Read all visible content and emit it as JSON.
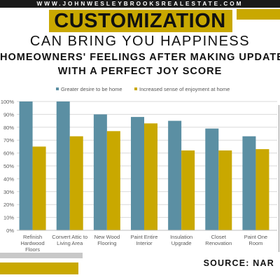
{
  "header": {
    "website": "WWW.JOHNWESLEYBROOKSREALESTATE.COM",
    "title": "CUSTOMIZATION",
    "subtitle_line1": "CAN BRING YOU HAPPINESS",
    "subtitle_line2": "HOMEOWNERS' FEELINGS AFTER MAKING UPDATES",
    "subtitle_line3": "WITH A PERFECT JOY SCORE"
  },
  "footer": {
    "source": "SOURCE: NAR"
  },
  "colors": {
    "accent_gold": "#c9a800",
    "series_blue": "#5b8fa3",
    "series_gold": "#c9a800"
  },
  "chart_data": {
    "type": "bar",
    "categories": [
      "Refinish Hardwood Floors",
      "Convert Attic to Living Area",
      "New Wood Flooring",
      "Paint Entire Interior",
      "Insulation Upgrade",
      "Closet Renovation",
      "Paint One Room"
    ],
    "category_lines": [
      [
        "Refinish",
        "Hardwood",
        "Floors"
      ],
      [
        "Convert Attic to",
        "Living Area"
      ],
      [
        "New Wood",
        "Flooring"
      ],
      [
        "Paint Entire",
        "Interior"
      ],
      [
        "Insulation",
        "Upgrade"
      ],
      [
        "Closet",
        "Renovation"
      ],
      [
        "Paint One",
        "Room"
      ]
    ],
    "series": [
      {
        "name": "Greater desire to be home",
        "values": [
          100,
          100,
          90,
          88,
          85,
          79,
          73
        ]
      },
      {
        "name": "Increased sense of enjoyment at home",
        "values": [
          65,
          73,
          77,
          83,
          62,
          62,
          63
        ]
      }
    ],
    "ylim": [
      0,
      100
    ],
    "yticks": [
      "0%",
      "10%",
      "20%",
      "30%",
      "40%",
      "50%",
      "60%",
      "70%",
      "80%",
      "90%",
      "100%"
    ],
    "grid": true,
    "legend_position": "top-center"
  }
}
